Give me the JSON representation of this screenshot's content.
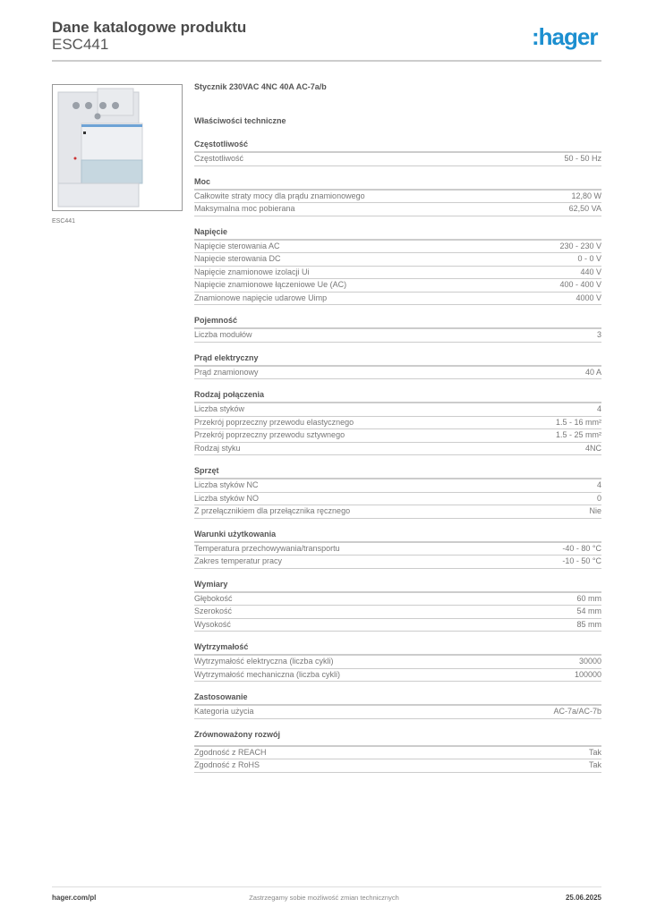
{
  "header": {
    "title": "Dane katalogowe produktu",
    "subtitle": "ESC441",
    "logo": ":hager"
  },
  "image": {
    "caption": "ESC441"
  },
  "product": {
    "name": "Stycznik 230VAC 4NC 40A AC-7a/b",
    "properties_heading": "Właściwości techniczne"
  },
  "sections": [
    {
      "title": "Częstotliwość",
      "rows": [
        {
          "label": "Częstotliwość",
          "value": "50 - 50 Hz"
        }
      ]
    },
    {
      "title": "Moc",
      "rows": [
        {
          "label": "Całkowite straty mocy dla prądu znamionowego",
          "value": "12,80 W"
        },
        {
          "label": "Maksymalna moc pobierana",
          "value": "62,50 VA"
        }
      ]
    },
    {
      "title": "Napięcie",
      "rows": [
        {
          "label": "Napięcie sterowania AC",
          "value": "230 - 230 V"
        },
        {
          "label": "Napięcie sterowania DC",
          "value": "0 - 0 V"
        },
        {
          "label": "Napięcie znamionowe izolacji Ui",
          "value": "440 V"
        },
        {
          "label": "Napięcie znamionowe łączeniowe Ue (AC)",
          "value": "400 - 400 V"
        },
        {
          "label": "Znamionowe napięcie udarowe Uimp",
          "value": "4000 V"
        }
      ]
    },
    {
      "title": "Pojemność",
      "rows": [
        {
          "label": "Liczba modułów",
          "value": "3"
        }
      ]
    },
    {
      "title": "Prąd elektryczny",
      "rows": [
        {
          "label": "Prąd znamionowy",
          "value": "40 A"
        }
      ]
    },
    {
      "title": "Rodzaj połączenia",
      "rows": [
        {
          "label": "Liczba styków",
          "value": "4"
        },
        {
          "label": "Przekrój poprzeczny przewodu elastycznego",
          "value": "1.5 - 16 mm²"
        },
        {
          "label": "Przekrój poprzeczny przewodu sztywnego",
          "value": "1.5 - 25 mm²"
        },
        {
          "label": "Rodzaj styku",
          "value": "4NC"
        }
      ]
    },
    {
      "title": "Sprzęt",
      "rows": [
        {
          "label": "Liczba styków NC",
          "value": "4"
        },
        {
          "label": "Liczba styków NO",
          "value": "0"
        },
        {
          "label": "Z przełącznikiem dla przełącznika ręcznego",
          "value": "Nie"
        }
      ]
    },
    {
      "title": "Warunki użytkowania",
      "rows": [
        {
          "label": "Temperatura przechowywania/transportu",
          "value": "-40 - 80 °C"
        },
        {
          "label": "Zakres temperatur pracy",
          "value": "-10 - 50 °C"
        }
      ]
    },
    {
      "title": "Wymiary",
      "rows": [
        {
          "label": "Głębokość",
          "value": "60 mm"
        },
        {
          "label": "Szerokość",
          "value": "54 mm"
        },
        {
          "label": "Wysokość",
          "value": "85 mm"
        }
      ]
    },
    {
      "title": "Wytrzymałość",
      "rows": [
        {
          "label": "Wytrzymałość elektryczna (liczba cykli)",
          "value": "30000"
        },
        {
          "label": "Wytrzymałość mechaniczna (liczba cykli)",
          "value": "100000"
        }
      ]
    },
    {
      "title": "Zastosowanie",
      "rows": [
        {
          "label": "Kategoria użycia",
          "value": "AC-7a/AC-7b"
        }
      ]
    },
    {
      "title": "Zrównoważony rozwój",
      "rows": [
        {
          "label": "Zgodność z REACH",
          "value": "Tak"
        },
        {
          "label": "Zgodność z RoHS",
          "value": "Tak"
        }
      ]
    }
  ],
  "footer": {
    "website": "hager.com/pl",
    "notice": "Zastrzegamy sobie możliwość zmian technicznych",
    "date": "25.06.2025"
  },
  "colors": {
    "brand": "#1c8fd0"
  }
}
